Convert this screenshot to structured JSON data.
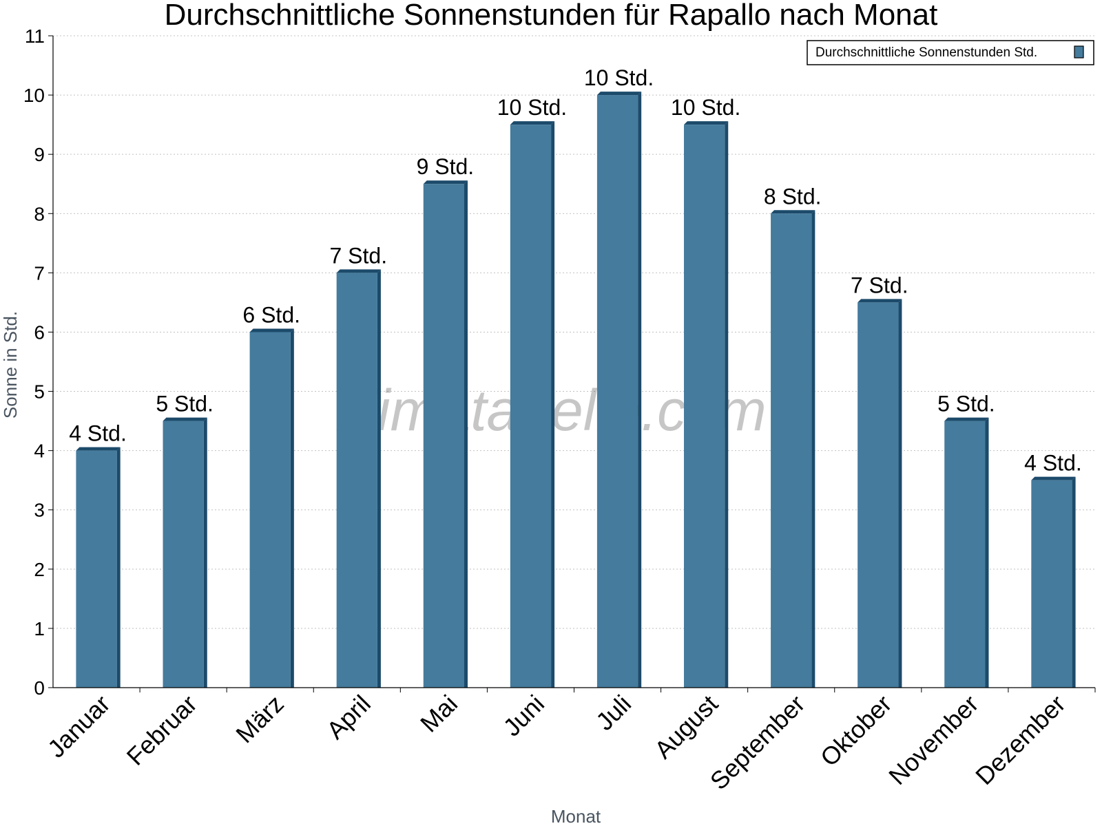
{
  "chart_data": {
    "type": "bar",
    "title": "Durchschnittliche Sonnenstunden für Rapallo nach Monat",
    "xlabel": "Monat",
    "ylabel": "Sonne in Std.",
    "ylim": [
      0,
      11
    ],
    "yticks": [
      "0",
      "1",
      "2",
      "3",
      "4",
      "5",
      "6",
      "7",
      "8",
      "9",
      "10",
      "11"
    ],
    "grid": true,
    "legend_position": "top-right",
    "categories": [
      "Januar",
      "Februar",
      "März",
      "April",
      "Mai",
      "Juni",
      "Juli",
      "August",
      "September",
      "Oktober",
      "November",
      "Dezember"
    ],
    "series": [
      {
        "name": "Durchschnittliche Sonnenstunden Std.",
        "color": "#457b9d",
        "values": [
          4,
          4.5,
          6,
          7,
          8.5,
          9.5,
          10,
          9.5,
          8,
          6.5,
          4.5,
          3.5
        ],
        "labels": [
          "4 Std.",
          "5 Std.",
          "6 Std.",
          "7 Std.",
          "9 Std.",
          "10 Std.",
          "10 Std.",
          "10 Std.",
          "8 Std.",
          "7 Std.",
          "5 Std.",
          "4 Std."
        ]
      }
    ]
  },
  "watermark": "klimatabelle.com",
  "colors": {
    "bar": "#457b9d",
    "bar_side": "#1c4a6a",
    "grid": "#c0c0c0"
  }
}
